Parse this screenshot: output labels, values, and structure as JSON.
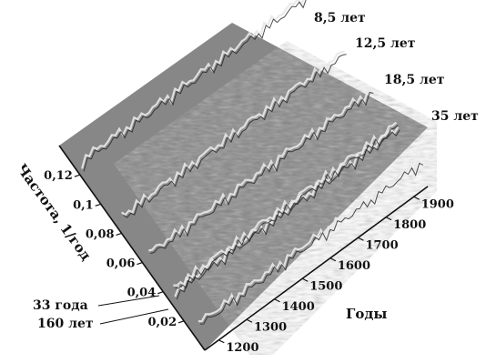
{
  "chart_data": {
    "type": "surface",
    "xlabel": "Годы",
    "ylabel": "Частота, 1/год",
    "x_ticks": [
      "1200",
      "1300",
      "1400",
      "1500",
      "1600",
      "1700",
      "1800",
      "1900"
    ],
    "y_ticks": [
      "0,02",
      "0,04",
      "0,06",
      "0,08",
      "0,1",
      "0,12"
    ],
    "xlim": [
      1150,
      1950
    ],
    "ylim": [
      0,
      0.14
    ],
    "grid": false,
    "ridges": [
      {
        "label": "8,5 лет",
        "frequency": 0.118
      },
      {
        "label": "12,5 лет",
        "frequency": 0.08
      },
      {
        "label": "18,5 лет",
        "frequency": 0.054
      },
      {
        "label": "35 лет",
        "frequency": 0.0286
      },
      {
        "label": "33 года",
        "frequency": 0.0303
      },
      {
        "label": "160 лет",
        "frequency": 0.00625
      }
    ]
  }
}
